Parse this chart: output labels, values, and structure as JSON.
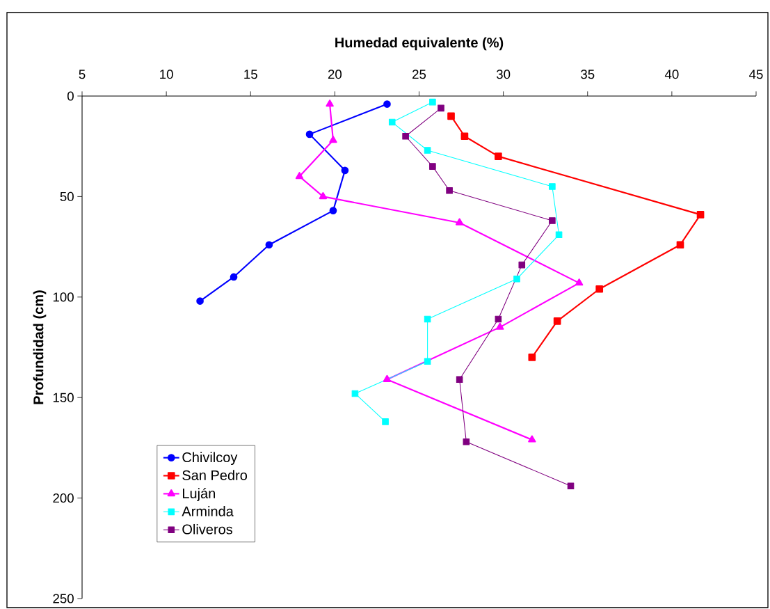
{
  "chart_data": {
    "type": "line",
    "xlabel": "Humedad equivalente (%)",
    "ylabel": "Profundidad (cm)",
    "xlim": [
      5,
      45
    ],
    "xticks": [
      5,
      10,
      15,
      20,
      25,
      30,
      35,
      40,
      45
    ],
    "ylim": [
      250,
      0
    ],
    "yticks": [
      0,
      50,
      100,
      150,
      200,
      250
    ],
    "grid": false,
    "legend": "bottom left",
    "series": [
      {
        "name": "Chivilcoy",
        "color": "#0000ff",
        "marker": "circle",
        "x": [
          23.1,
          18.5,
          20.6,
          19.9,
          16.1,
          14.0,
          12.0
        ],
        "values": [
          4,
          19,
          37,
          57,
          74,
          90,
          102
        ]
      },
      {
        "name": "San Pedro",
        "color": "#ff0000",
        "marker": "square",
        "x": [
          26.9,
          27.7,
          29.7,
          41.7,
          40.5,
          35.7,
          33.2,
          31.7
        ],
        "values": [
          10,
          20,
          30,
          59,
          74,
          96,
          112,
          130
        ]
      },
      {
        "name": "Luján",
        "color": "#ff00ff",
        "marker": "triangle",
        "x": [
          19.7,
          19.9,
          17.9,
          19.3,
          27.4,
          34.5,
          29.8,
          23.1,
          31.7
        ],
        "values": [
          4,
          22,
          40,
          50,
          63,
          93,
          115,
          141,
          171
        ]
      },
      {
        "name": "Arminda",
        "color": "#00ffff",
        "marker": "square",
        "x": [
          25.8,
          23.4,
          25.5,
          32.9,
          33.3,
          30.8,
          25.5,
          25.5,
          21.2,
          23.0
        ],
        "values": [
          3,
          13,
          27,
          45,
          69,
          91,
          111,
          132,
          148,
          162
        ]
      },
      {
        "name": "Oliveros",
        "color": "#800080",
        "marker": "square",
        "x": [
          26.3,
          24.2,
          25.8,
          26.8,
          32.9,
          31.1,
          29.7,
          27.4,
          27.8,
          34.0
        ],
        "values": [
          6,
          20,
          35,
          47,
          62,
          84,
          111,
          141,
          172,
          194
        ]
      }
    ]
  }
}
